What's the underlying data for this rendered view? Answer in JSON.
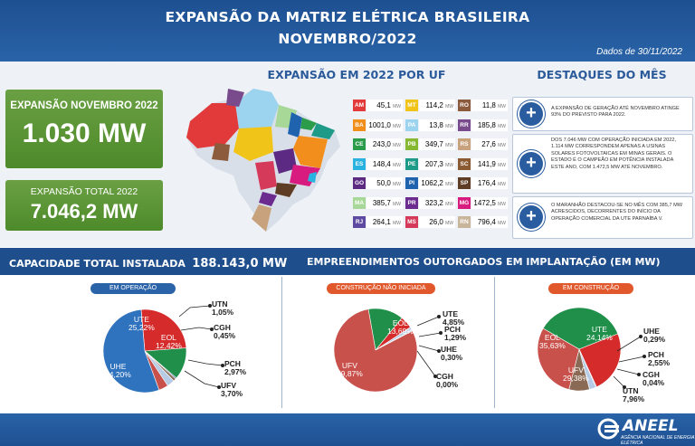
{
  "header": {
    "title_line1": "EXPANSÃO DA MATRIZ ELÉTRICA BRASILEIRA",
    "title_line2": "NOVEMBRO/2022",
    "date": "Dados de 30/11/2022"
  },
  "expansion": {
    "month_label": "EXPANSÃO NOVEMBRO 2022",
    "month_value": "1.030 MW",
    "total_label": "EXPANSÃO TOTAL 2022",
    "total_value": "7.046,2 MW"
  },
  "uf_section": {
    "title": "EXPANSÃO EM 2022 POR UF",
    "unit": "MW",
    "items": [
      {
        "uf": "AM",
        "value": "45,1",
        "color": "#e23a3a"
      },
      {
        "uf": "MT",
        "value": "114,2",
        "color": "#f0c419"
      },
      {
        "uf": "RO",
        "value": "11,8",
        "color": "#8c5a3c"
      },
      {
        "uf": "BA",
        "value": "1001,0",
        "color": "#f28f1c"
      },
      {
        "uf": "PA",
        "value": "13,8",
        "color": "#9cd3ef"
      },
      {
        "uf": "RR",
        "value": "185,8",
        "color": "#7a4b8c"
      },
      {
        "uf": "CE",
        "value": "243,0",
        "color": "#2a9c4a"
      },
      {
        "uf": "PB",
        "value": "349,7",
        "color": "#87b832"
      },
      {
        "uf": "RS",
        "value": "27,6",
        "color": "#c8a27c"
      },
      {
        "uf": "ES",
        "value": "148,4",
        "color": "#2ab3e0"
      },
      {
        "uf": "PE",
        "value": "207,3",
        "color": "#1e9a88"
      },
      {
        "uf": "SC",
        "value": "141,9",
        "color": "#8a5a32"
      },
      {
        "uf": "GO",
        "value": "50,0",
        "color": "#5c2a82"
      },
      {
        "uf": "PI",
        "value": "1062,2",
        "color": "#1f63ae"
      },
      {
        "uf": "SP",
        "value": "176,4",
        "color": "#5e3d24"
      },
      {
        "uf": "MA",
        "value": "385,7",
        "color": "#a8d898"
      },
      {
        "uf": "PR",
        "value": "323,2",
        "color": "#6b2b8f"
      },
      {
        "uf": "MG",
        "value": "1472,5",
        "color": "#d81b7e"
      },
      {
        "uf": "RJ",
        "value": "264,1",
        "color": "#5e4aa0"
      },
      {
        "uf": "MS",
        "value": "26,0",
        "color": "#d63a5a"
      },
      {
        "uf": "RN",
        "value": "796,4",
        "color": "#c9b59a"
      }
    ]
  },
  "highlights": {
    "title": "DESTAQUES DO MÊS",
    "items": [
      "A EXPANSÃO DE GERAÇÃO ATÉ NOVEMBRO ATINGE 93% DO PREVISTO PARA 2022.",
      "DOS 7.046 MW COM OPERAÇÃO INICIADA EM 2022, 1.114 MW CORRESPONDEM APENAS A USINAS SOLARES FOTOVOLTAICAS EM MINAS GERAIS. O ESTADO É O CAMPEÃO EM POTÊNCIA INSTALADA ESTE ANO, COM 1.472,5 MW ATÉ NOVEMBRO.",
      "O MARANHÃO DESTACOU-SE NO MÊS COM 385,7 MW ACRESCIDOS, DECORRENTES DO INÍCIO DA OPERAÇÃO COMERCIAL DA UTE PARNAÍBA V."
    ]
  },
  "capacity": {
    "label": "CAPACIDADE TOTAL INSTALADA",
    "value": "188.143,0 MW"
  },
  "empreendimentos_title": "EMPREENDIMENTOS OUTORGADOS EM IMPLANTAÇÃO (EM MW)",
  "colors": {
    "UHE": "#2f72bd",
    "UTE": "#d62b2b",
    "EOL": "#1f8f4a",
    "UFV": "#c9514c",
    "PCH": "#b7cbe4",
    "CGH": "#2a4f82",
    "UTN": "#8a6a55"
  },
  "chart_data": [
    {
      "type": "pie",
      "title": "EM OPERAÇÃO",
      "title_color": "#2a63a8",
      "categories": [
        "UTE",
        "EOL",
        "CGH",
        "UTN",
        "PCH",
        "UFV",
        "UHE"
      ],
      "values": [
        25.22,
        12.42,
        0.45,
        1.05,
        2.97,
        3.7,
        54.2
      ],
      "labels": [
        "25,22%",
        "12,42%",
        "0,45%",
        "1,05%",
        "2,97%",
        "3,70%",
        "54,20%"
      ]
    },
    {
      "type": "pie",
      "title": "CONSTRUÇÃO NÃO INICIADA",
      "title_color": "#e0582c",
      "categories": [
        "EOL",
        "UTE",
        "PCH",
        "UHE",
        "CGH",
        "UFV"
      ],
      "values": [
        13.69,
        4.85,
        1.29,
        0.3,
        0.0,
        79.87
      ],
      "labels": [
        "13,69%",
        "4,85%",
        "1,29%",
        "0,30%",
        "0,00%",
        "79,87%"
      ]
    },
    {
      "type": "pie",
      "title": "EM CONSTRUÇÃO",
      "title_color": "#e0582c",
      "categories": [
        "EOL",
        "UTE",
        "UHE",
        "PCH",
        "CGH",
        "UTN",
        "UFV"
      ],
      "values": [
        35.63,
        24.14,
        0.29,
        2.55,
        0.04,
        7.96,
        29.38
      ],
      "labels": [
        "35,63%",
        "24,14%",
        "0,29%",
        "2,55%",
        "0,04%",
        "7,96%",
        "29,38%"
      ]
    }
  ],
  "footer": {
    "brand": "ANEEL",
    "tagline": "AGÊNCIA NACIONAL DE ENERGIA ELÉTRICA"
  }
}
